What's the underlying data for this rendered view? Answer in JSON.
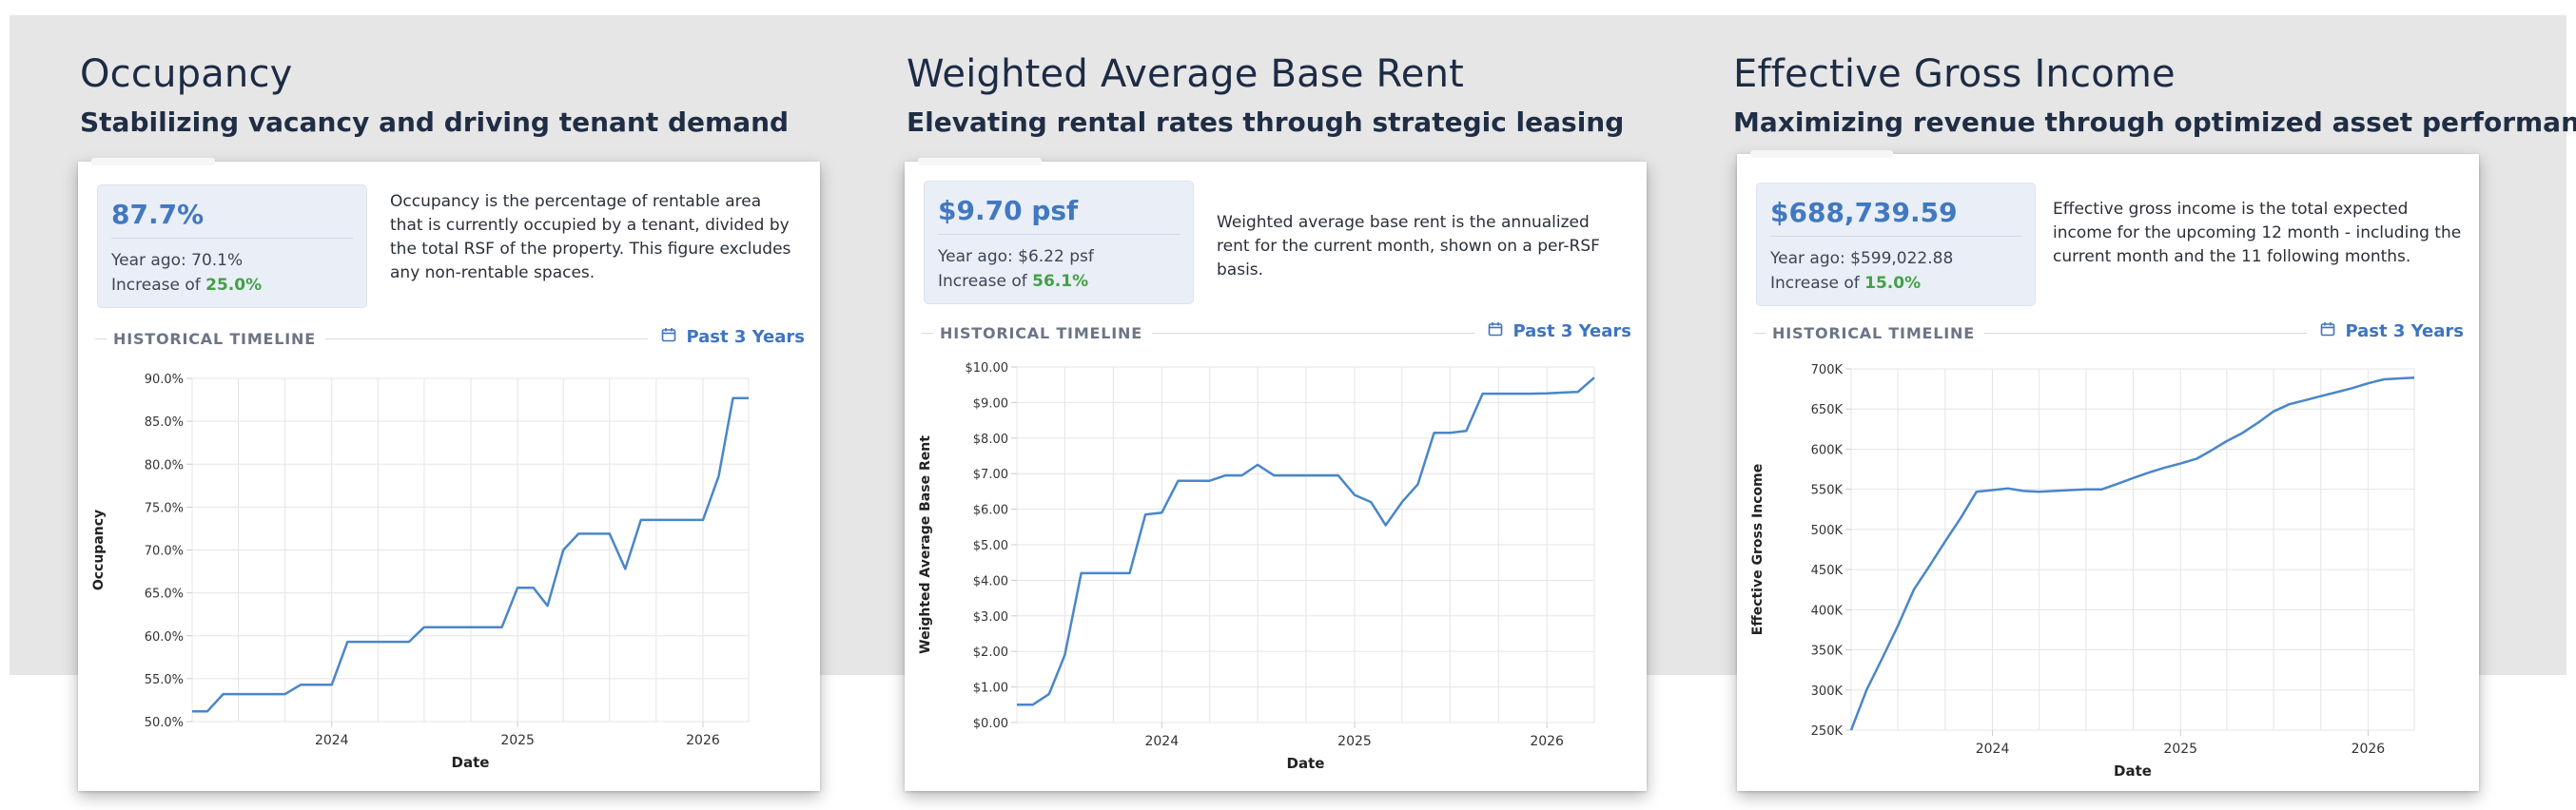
{
  "panels": [
    {
      "id": "occupancy",
      "title": "Occupancy",
      "subtitle": "Stabilizing vacancy and driving tenant demand",
      "metric": {
        "value": "87.7%",
        "year_ago": "Year ago: 70.1%",
        "increase_prefix": "Increase of ",
        "increase_pct": "25.0%"
      },
      "description": "Occupancy is the percentage of rentable area that is currently occupied by a tenant, divided by the total RSF of the property. This figure excludes any non-rentable spaces.",
      "timeline": {
        "label": "HISTORICAL TIMELINE",
        "range": "Past 3 Years",
        "icon": "calendar-icon"
      }
    },
    {
      "id": "base-rent",
      "title": "Weighted Average Base Rent",
      "subtitle": "Elevating rental rates through strategic leasing",
      "metric": {
        "value": "$9.70 psf",
        "year_ago": "Year ago: $6.22 psf",
        "increase_prefix": "Increase of ",
        "increase_pct": "56.1%"
      },
      "description": "Weighted average base rent is the annualized rent for the current month, shown on a per-RSF basis.",
      "timeline": {
        "label": "HISTORICAL TIMELINE",
        "range": "Past 3 Years",
        "icon": "calendar-icon"
      }
    },
    {
      "id": "egi",
      "title": "Effective Gross Income",
      "subtitle": "Maximizing revenue through optimized asset performance",
      "metric": {
        "value": "$688,739.59",
        "year_ago": "Year ago: $599,022.88",
        "increase_prefix": "Increase of ",
        "increase_pct": "15.0%"
      },
      "description": "Effective gross income is the total expected income for the upcoming 12 month - including the current month and the 11 following months.",
      "timeline": {
        "label": "HISTORICAL TIMELINE",
        "range": "Past 3 Years",
        "icon": "calendar-icon"
      }
    }
  ],
  "chart_data": [
    {
      "type": "line",
      "xlabel": "Date",
      "ylabel": "Occupancy",
      "line_color": "#4a86c8",
      "grid": true,
      "xlim": [
        "2023-04-01",
        "2026-04-01"
      ],
      "ylim": [
        50,
        90
      ],
      "x_ticks": [
        "2024",
        "2025",
        "2026"
      ],
      "y_ticks": [
        "50.0%",
        "55.0%",
        "60.0%",
        "65.0%",
        "70.0%",
        "75.0%",
        "80.0%",
        "85.0%",
        "90.0%"
      ],
      "series": [
        {
          "x": [
            "2023-04-01",
            "2023-05-01",
            "2023-06-01",
            "2023-07-01",
            "2023-08-01",
            "2023-09-01",
            "2023-10-01",
            "2023-11-01",
            "2023-12-01",
            "2024-01-01",
            "2024-02-01",
            "2024-03-01",
            "2024-04-01",
            "2024-05-01",
            "2024-06-01",
            "2024-07-01",
            "2024-08-01",
            "2024-09-01",
            "2024-10-01",
            "2024-11-01",
            "2024-12-01",
            "2025-01-01",
            "2025-02-01",
            "2025-03-01",
            "2025-04-01",
            "2025-05-01",
            "2025-06-01",
            "2025-07-01",
            "2025-08-01",
            "2025-09-01",
            "2025-10-01",
            "2025-11-01",
            "2025-12-01",
            "2026-01-01",
            "2026-02-01",
            "2026-03-01",
            "2026-04-01"
          ],
          "y": [
            51.2,
            51.2,
            53.2,
            53.2,
            53.2,
            53.2,
            53.2,
            54.3,
            54.3,
            54.3,
            59.3,
            59.3,
            59.3,
            59.3,
            59.3,
            61.0,
            61.0,
            61.0,
            61.0,
            61.0,
            61.0,
            65.6,
            65.6,
            63.5,
            70.0,
            71.9,
            71.9,
            71.9,
            67.8,
            73.5,
            73.5,
            73.5,
            73.5,
            73.5,
            78.6,
            87.7,
            87.7
          ]
        }
      ]
    },
    {
      "type": "line",
      "xlabel": "Date",
      "ylabel": "Weighted Average Base Rent",
      "line_color": "#4a86c8",
      "grid": true,
      "xlim": [
        "2023-04-01",
        "2026-04-01"
      ],
      "ylim": [
        0,
        10
      ],
      "x_ticks": [
        "2024",
        "2025",
        "2026"
      ],
      "y_ticks": [
        "$0.00",
        "$1.00",
        "$2.00",
        "$3.00",
        "$4.00",
        "$5.00",
        "$6.00",
        "$7.00",
        "$8.00",
        "$9.00",
        "$10.00"
      ],
      "series": [
        {
          "x": [
            "2023-04-01",
            "2023-05-01",
            "2023-06-01",
            "2023-07-01",
            "2023-08-01",
            "2023-09-01",
            "2023-10-01",
            "2023-11-01",
            "2023-12-01",
            "2024-01-01",
            "2024-02-01",
            "2024-03-01",
            "2024-04-01",
            "2024-05-01",
            "2024-06-01",
            "2024-07-01",
            "2024-08-01",
            "2024-09-01",
            "2024-10-01",
            "2024-11-01",
            "2024-12-01",
            "2025-01-01",
            "2025-02-01",
            "2025-03-01",
            "2025-04-01",
            "2025-05-01",
            "2025-06-01",
            "2025-07-01",
            "2025-08-01",
            "2025-09-01",
            "2025-10-01",
            "2025-11-01",
            "2025-12-01",
            "2026-01-01",
            "2026-02-01",
            "2026-03-01",
            "2026-04-01"
          ],
          "y": [
            0.5,
            0.5,
            0.8,
            1.9,
            4.2,
            4.2,
            4.2,
            4.2,
            5.85,
            5.9,
            6.8,
            6.8,
            6.8,
            6.95,
            6.95,
            7.25,
            6.95,
            6.95,
            6.95,
            6.95,
            6.95,
            6.4,
            6.2,
            5.55,
            6.2,
            6.7,
            8.15,
            8.15,
            8.2,
            9.25,
            9.25,
            9.25,
            9.25,
            9.26,
            9.28,
            9.3,
            9.7
          ]
        }
      ]
    },
    {
      "type": "line",
      "xlabel": "Date",
      "ylabel": "Effective Gross Income",
      "line_color": "#4a86c8",
      "grid": true,
      "xlim": [
        "2023-04-01",
        "2026-04-01"
      ],
      "ylim": [
        250,
        700
      ],
      "x_ticks": [
        "2024",
        "2025",
        "2026"
      ],
      "y_ticks": [
        "250K",
        "300K",
        "350K",
        "400K",
        "450K",
        "500K",
        "550K",
        "600K",
        "650K",
        "700K"
      ],
      "series": [
        {
          "x": [
            "2023-04-01",
            "2023-05-01",
            "2023-06-01",
            "2023-07-01",
            "2023-08-01",
            "2023-09-01",
            "2023-10-01",
            "2023-11-01",
            "2023-12-01",
            "2024-01-01",
            "2024-02-01",
            "2024-03-01",
            "2024-04-01",
            "2024-05-01",
            "2024-06-01",
            "2024-07-01",
            "2024-08-01",
            "2024-09-01",
            "2024-10-01",
            "2024-11-01",
            "2024-12-01",
            "2025-01-01",
            "2025-02-01",
            "2025-03-01",
            "2025-04-01",
            "2025-05-01",
            "2025-06-01",
            "2025-07-01",
            "2025-08-01",
            "2025-09-01",
            "2025-10-01",
            "2025-11-01",
            "2025-12-01",
            "2026-01-01",
            "2026-02-01",
            "2026-03-01",
            "2026-04-01"
          ],
          "y": [
            250,
            300,
            340,
            380,
            425,
            455,
            485,
            515,
            547,
            549,
            551,
            548,
            547,
            548,
            549,
            550,
            550,
            557,
            564,
            571,
            577,
            582,
            588,
            598,
            610,
            620,
            633,
            647,
            656,
            661,
            666,
            671,
            676,
            682,
            687,
            688,
            689
          ]
        }
      ]
    }
  ]
}
